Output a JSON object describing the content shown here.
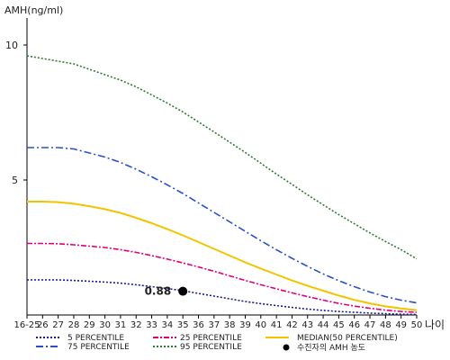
{
  "chart_data": {
    "type": "line",
    "ylabel": "AMH(ng/ml)",
    "xlabel": "나이",
    "categories": [
      "16-25",
      "26",
      "27",
      "28",
      "29",
      "30",
      "31",
      "32",
      "33",
      "34",
      "35",
      "36",
      "37",
      "38",
      "39",
      "40",
      "41",
      "42",
      "43",
      "44",
      "45",
      "46",
      "47",
      "48",
      "49",
      "50"
    ],
    "yticks": [
      5,
      10
    ],
    "ylim": [
      0,
      11
    ],
    "series": [
      {
        "name": "5 PERCENTILE",
        "color": "#1a1a8c",
        "dash": "2,2",
        "values": [
          1.3,
          1.3,
          1.3,
          1.28,
          1.25,
          1.22,
          1.18,
          1.12,
          1.05,
          0.98,
          0.9,
          0.8,
          0.7,
          0.6,
          0.5,
          0.42,
          0.35,
          0.28,
          0.22,
          0.17,
          0.13,
          0.1,
          0.07,
          0.05,
          0.03,
          0.02
        ]
      },
      {
        "name": "25 PERCENTILE",
        "color": "#e0007a",
        "dash": "6,2,2,2",
        "values": [
          2.65,
          2.65,
          2.64,
          2.6,
          2.55,
          2.5,
          2.42,
          2.32,
          2.2,
          2.07,
          1.93,
          1.78,
          1.62,
          1.45,
          1.28,
          1.12,
          0.97,
          0.82,
          0.68,
          0.55,
          0.43,
          0.33,
          0.25,
          0.18,
          0.13,
          0.1
        ]
      },
      {
        "name": "MEDIAN(50 PERCENTILE)",
        "color": "#f2c400",
        "dash": "",
        "values": [
          4.2,
          4.2,
          4.18,
          4.12,
          4.03,
          3.92,
          3.78,
          3.6,
          3.4,
          3.18,
          2.95,
          2.7,
          2.45,
          2.2,
          1.95,
          1.72,
          1.5,
          1.28,
          1.08,
          0.9,
          0.72,
          0.56,
          0.43,
          0.32,
          0.24,
          0.18
        ]
      },
      {
        "name": "75 PERCENTILE",
        "color": "#2a4fc9",
        "dash": "8,3,2,3",
        "values": [
          6.2,
          6.2,
          6.2,
          6.15,
          6.0,
          5.85,
          5.65,
          5.4,
          5.12,
          4.82,
          4.5,
          4.15,
          3.8,
          3.45,
          3.1,
          2.75,
          2.42,
          2.1,
          1.8,
          1.52,
          1.27,
          1.05,
          0.85,
          0.68,
          0.55,
          0.45
        ]
      },
      {
        "name": "95 PERCENTILE",
        "color": "#2e7d32",
        "dash": "2,2",
        "values": [
          9.6,
          9.5,
          9.4,
          9.3,
          9.1,
          8.9,
          8.7,
          8.45,
          8.15,
          7.85,
          7.52,
          7.15,
          6.78,
          6.4,
          6.02,
          5.62,
          5.22,
          4.84,
          4.45,
          4.08,
          3.72,
          3.38,
          3.04,
          2.72,
          2.42,
          2.08
        ]
      }
    ],
    "marker": {
      "name": "수진자의 AMH 농도",
      "x": "35",
      "y": 0.88,
      "label": "0.88"
    }
  }
}
